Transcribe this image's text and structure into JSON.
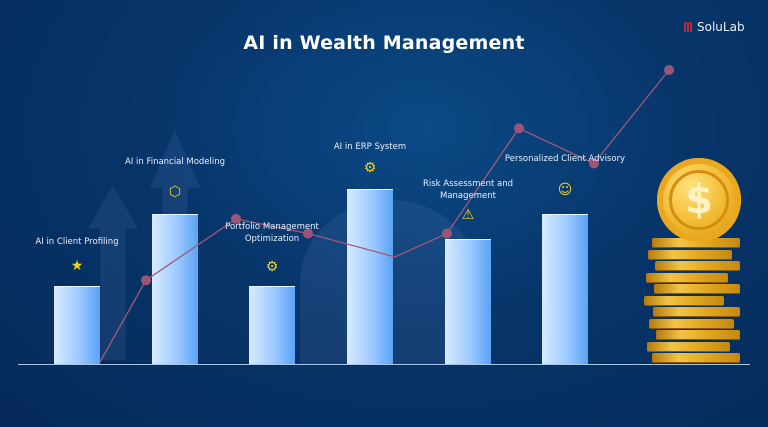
{
  "title": "AI in Wealth Management",
  "brand": "SoluLab",
  "colors": {
    "background": "#07356a",
    "bar": "#9cc9ff",
    "line": "#a05a78",
    "icon": "#f7d21a",
    "coin": "#f0b429"
  },
  "items": [
    {
      "label": "AI in Client Profiling",
      "icon": "user-star-icon",
      "level": 0.28
    },
    {
      "label": "AI in Financial Modeling",
      "icon": "network-coin-icon",
      "level": 0.54
    },
    {
      "label": "Portfolio Management Optimization",
      "icon": "gear-check-icon",
      "level": 0.28
    },
    {
      "label": "AI in ERP System",
      "icon": "erp-gear-icon",
      "level": 0.63
    },
    {
      "label": "Risk Assessment and Management",
      "icon": "document-warning-icon",
      "level": 0.45
    },
    {
      "label": "Personalized Client Advisory",
      "icon": "advisor-icon",
      "level": 0.54
    }
  ],
  "trend_levels": [
    0.0,
    0.28,
    0.49,
    0.44,
    0.36,
    0.44,
    0.8,
    0.68,
    1.0
  ],
  "coin_symbol": "$"
}
